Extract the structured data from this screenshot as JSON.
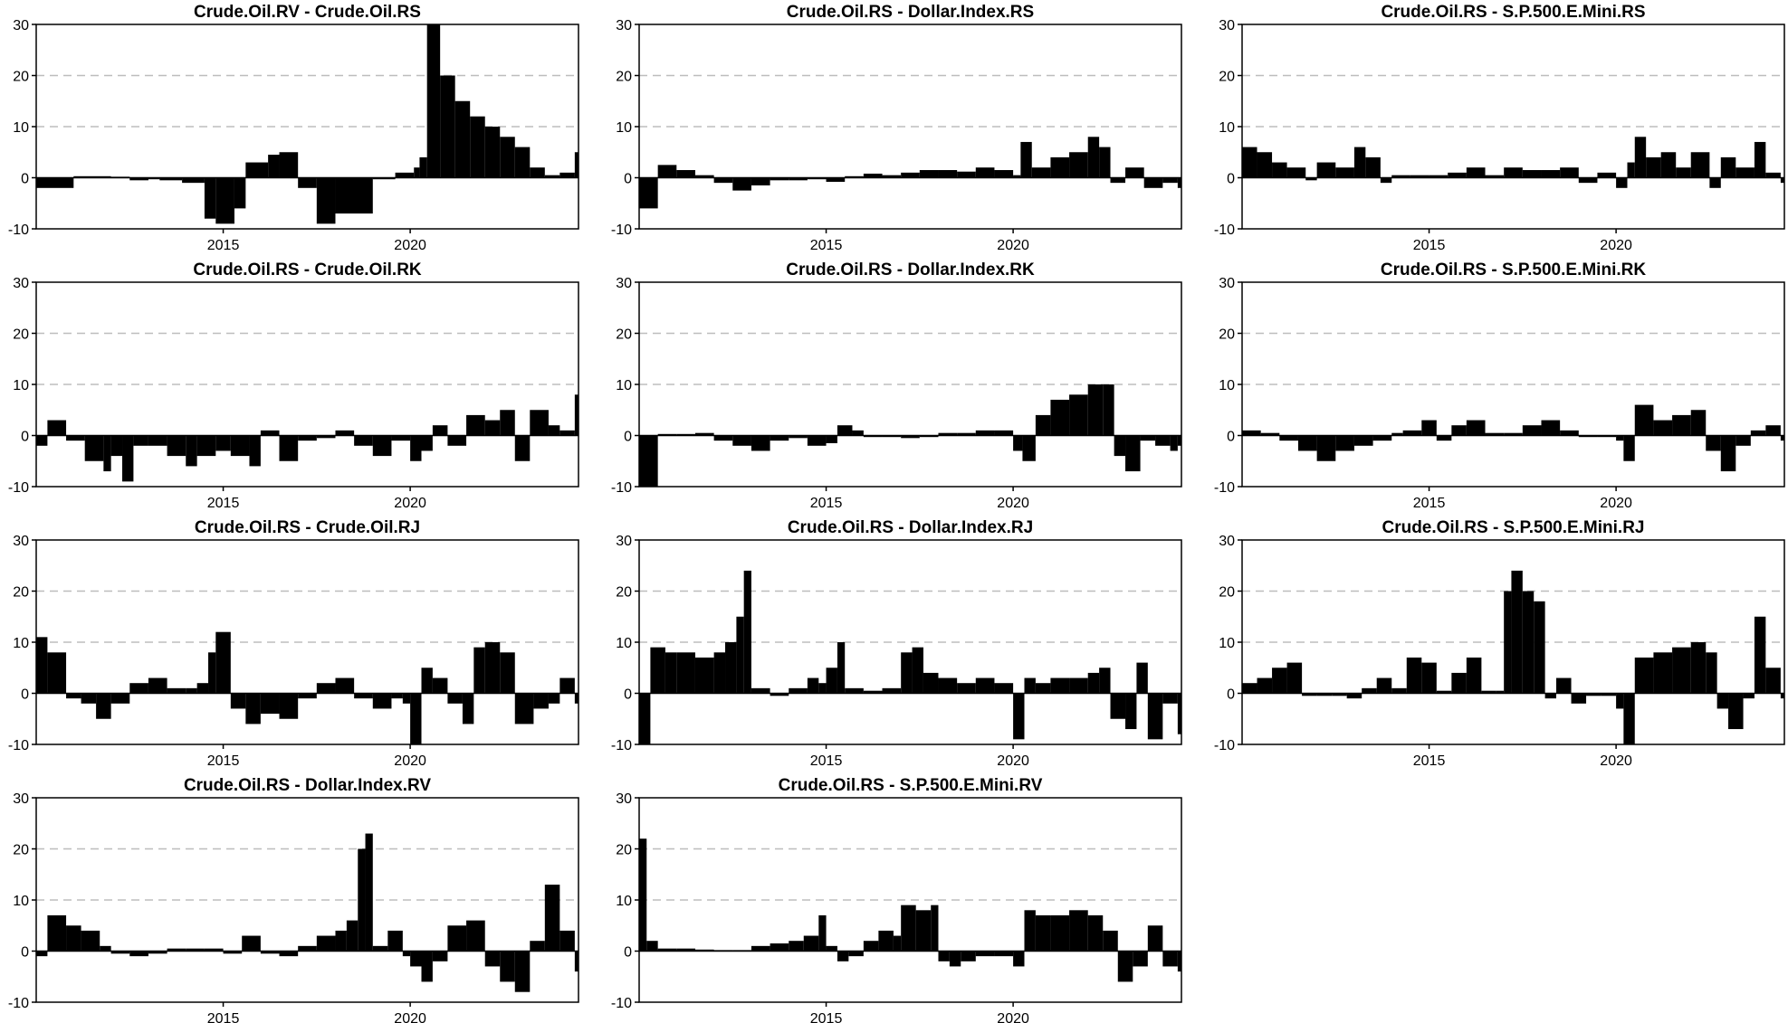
{
  "figure": {
    "ylim": [
      -10,
      30
    ],
    "yticks": [
      -10,
      0,
      10,
      20,
      30
    ],
    "xlim": [
      2010.0,
      2024.5
    ],
    "xticks": [
      2015,
      2020
    ],
    "xtick_labels": [
      "2015",
      "2020"
    ],
    "dashed_gridlines_at": [
      20,
      10
    ],
    "bar_color": "#000000",
    "grid_color": "#bdbdbd"
  },
  "chart_data": [
    {
      "type": "bar",
      "title": "Crude.Oil.RV - Crude.Oil.RS",
      "xlabel": "",
      "ylabel": "",
      "ylim": [
        -10,
        30
      ],
      "grid": "dashed horizontal",
      "x": [
        2010.0,
        2011.0,
        2012.0,
        2012.5,
        2013.0,
        2013.3,
        2013.9,
        2014.5,
        2014.8,
        2015.3,
        2015.6,
        2016.2,
        2016.5,
        2017.0,
        2017.5,
        2018.0,
        2019.0,
        2019.6,
        2020.1,
        2020.25,
        2020.45,
        2020.8,
        2021.2,
        2021.6,
        2022.0,
        2022.4,
        2022.8,
        2023.2,
        2023.6,
        2024.0,
        2024.4
      ],
      "values": [
        -2,
        0.3,
        0.2,
        -0.5,
        -0.3,
        -0.5,
        -1,
        -8,
        -9,
        -6,
        3,
        4.5,
        5,
        -2,
        -9,
        -7,
        -0.3,
        1,
        2,
        4,
        30,
        20,
        15,
        12,
        10,
        8,
        6,
        2,
        0.5,
        1,
        5
      ]
    },
    {
      "type": "bar",
      "title": "Crude.Oil.RS - Dollar.Index.RS",
      "xlabel": "",
      "ylabel": "",
      "ylim": [
        -10,
        30
      ],
      "grid": "dashed horizontal",
      "x": [
        2010.0,
        2010.5,
        2011.0,
        2011.5,
        2012.0,
        2012.5,
        2013.0,
        2013.5,
        2014.0,
        2014.5,
        2015.0,
        2015.5,
        2016.0,
        2016.5,
        2017.0,
        2017.5,
        2018.0,
        2018.5,
        2019.0,
        2019.5,
        2020.0,
        2020.2,
        2020.5,
        2021.0,
        2021.5,
        2022.0,
        2022.3,
        2022.6,
        2023.0,
        2023.5,
        2024.0,
        2024.4
      ],
      "values": [
        -6,
        2.5,
        1.5,
        0.5,
        -1,
        -2.5,
        -1.5,
        -0.5,
        -0.5,
        -0.3,
        -0.8,
        0.3,
        0.8,
        0.5,
        1,
        1.5,
        1.5,
        1.2,
        2,
        1.5,
        0.5,
        7,
        2,
        4,
        5,
        8,
        6,
        -1,
        2,
        -2,
        -1,
        -2
      ]
    },
    {
      "type": "bar",
      "title": "Crude.Oil.RS - S.P.500.E.Mini.RS",
      "xlabel": "",
      "ylabel": "",
      "ylim": [
        -10,
        30
      ],
      "grid": "dashed horizontal",
      "x": [
        2010.0,
        2010.4,
        2010.8,
        2011.2,
        2011.7,
        2012.0,
        2012.5,
        2013.0,
        2013.3,
        2013.7,
        2014.0,
        2014.5,
        2015.0,
        2015.5,
        2016.0,
        2016.5,
        2017.0,
        2017.5,
        2018.0,
        2018.5,
        2019.0,
        2019.5,
        2020.0,
        2020.3,
        2020.5,
        2020.8,
        2021.2,
        2021.6,
        2022.0,
        2022.5,
        2022.8,
        2023.2,
        2023.7,
        2024.0,
        2024.4
      ],
      "values": [
        6,
        5,
        3,
        2,
        -0.5,
        3,
        2,
        6,
        4,
        -1,
        0.5,
        0.5,
        0.5,
        1,
        2,
        0.5,
        2,
        1.5,
        1.5,
        2,
        -1,
        1,
        -2,
        3,
        8,
        4,
        5,
        2,
        5,
        -2,
        4,
        2,
        7,
        1,
        -1
      ]
    },
    {
      "type": "bar",
      "title": "Crude.Oil.RS - Crude.Oil.RK",
      "xlabel": "",
      "ylabel": "",
      "ylim": [
        -10,
        30
      ],
      "grid": "dashed horizontal",
      "x": [
        2010.0,
        2010.3,
        2010.8,
        2011.3,
        2011.8,
        2012.0,
        2012.3,
        2012.6,
        2013.0,
        2013.5,
        2014.0,
        2014.3,
        2014.8,
        2015.2,
        2015.7,
        2016.0,
        2016.5,
        2017.0,
        2017.5,
        2018.0,
        2018.5,
        2019.0,
        2019.5,
        2020.0,
        2020.3,
        2020.6,
        2021.0,
        2021.5,
        2022.0,
        2022.4,
        2022.8,
        2023.2,
        2023.7,
        2024.0,
        2024.4
      ],
      "values": [
        -2,
        3,
        -1,
        -5,
        -7,
        -4,
        -9,
        -2,
        -2,
        -4,
        -6,
        -4,
        -3,
        -4,
        -6,
        1,
        -5,
        -1,
        -0.5,
        1,
        -2,
        -4,
        -1,
        -5,
        -3,
        2,
        -2,
        4,
        3,
        5,
        -5,
        5,
        2,
        1,
        8
      ]
    },
    {
      "type": "bar",
      "title": "Crude.Oil.RS - Dollar.Index.RK",
      "xlabel": "",
      "ylabel": "",
      "ylim": [
        -10,
        30
      ],
      "grid": "dashed horizontal",
      "x": [
        2010.0,
        2010.5,
        2011.0,
        2011.5,
        2012.0,
        2012.5,
        2013.0,
        2013.5,
        2014.0,
        2014.5,
        2015.0,
        2015.3,
        2015.7,
        2016.0,
        2016.5,
        2017.0,
        2017.5,
        2018.0,
        2018.5,
        2019.0,
        2019.5,
        2020.0,
        2020.25,
        2020.6,
        2021.0,
        2021.5,
        2022.0,
        2022.4,
        2022.7,
        2023.0,
        2023.4,
        2023.8,
        2024.2,
        2024.4
      ],
      "values": [
        -10,
        0.3,
        0.3,
        0.5,
        -1,
        -2,
        -3,
        -1,
        -0.5,
        -2,
        -1.5,
        2,
        1,
        -0.3,
        -0.3,
        -0.5,
        -0.3,
        0.5,
        0.5,
        1,
        1,
        -3,
        -5,
        4,
        7,
        8,
        10,
        10,
        -4,
        -7,
        -1,
        -2,
        -3,
        -2
      ]
    },
    {
      "type": "bar",
      "title": "Crude.Oil.RS - S.P.500.E.Mini.RK",
      "xlabel": "",
      "ylabel": "",
      "ylim": [
        -10,
        30
      ],
      "grid": "dashed horizontal",
      "x": [
        2010.0,
        2010.5,
        2011.0,
        2011.5,
        2012.0,
        2012.5,
        2013.0,
        2013.5,
        2014.0,
        2014.3,
        2014.8,
        2015.2,
        2015.6,
        2016.0,
        2016.5,
        2017.0,
        2017.5,
        2018.0,
        2018.5,
        2019.0,
        2019.5,
        2020.0,
        2020.2,
        2020.5,
        2021.0,
        2021.5,
        2022.0,
        2022.4,
        2022.8,
        2023.2,
        2023.6,
        2024.0,
        2024.4
      ],
      "values": [
        1,
        0.5,
        -1,
        -3,
        -5,
        -3,
        -2,
        -1,
        0.5,
        1,
        3,
        -1,
        2,
        3,
        0.5,
        0.5,
        2,
        3,
        1,
        -0.3,
        -0.3,
        -1,
        -5,
        6,
        3,
        4,
        5,
        -3,
        -7,
        -2,
        1,
        2,
        -1
      ]
    },
    {
      "type": "bar",
      "title": "Crude.Oil.RS - Crude.Oil.RJ",
      "xlabel": "",
      "ylabel": "",
      "ylim": [
        -10,
        30
      ],
      "grid": "dashed horizontal",
      "x": [
        2010.0,
        2010.3,
        2010.8,
        2011.2,
        2011.6,
        2012.0,
        2012.5,
        2013.0,
        2013.5,
        2014.0,
        2014.3,
        2014.6,
        2014.8,
        2015.2,
        2015.6,
        2016.0,
        2016.5,
        2017.0,
        2017.5,
        2018.0,
        2018.5,
        2019.0,
        2019.5,
        2019.8,
        2020.0,
        2020.3,
        2020.6,
        2021.0,
        2021.4,
        2021.7,
        2022.0,
        2022.4,
        2022.8,
        2023.3,
        2023.7,
        2024.0,
        2024.4
      ],
      "values": [
        11,
        8,
        -1,
        -2,
        -5,
        -2,
        2,
        3,
        1,
        1,
        2,
        8,
        12,
        -3,
        -6,
        -4,
        -5,
        -1,
        2,
        3,
        -1,
        -3,
        -1,
        -2,
        -10,
        5,
        3,
        -2,
        -6,
        9,
        10,
        8,
        -6,
        -3,
        -2,
        3,
        -2
      ]
    },
    {
      "type": "bar",
      "title": "Crude.Oil.RS - Dollar.Index.RJ",
      "xlabel": "",
      "ylabel": "",
      "ylim": [
        -10,
        30
      ],
      "grid": "dashed horizontal",
      "x": [
        2010.0,
        2010.3,
        2010.7,
        2011.0,
        2011.5,
        2012.0,
        2012.3,
        2012.6,
        2012.8,
        2013.0,
        2013.5,
        2014.0,
        2014.5,
        2014.8,
        2015.0,
        2015.3,
        2015.5,
        2016.0,
        2016.5,
        2017.0,
        2017.3,
        2017.6,
        2018.0,
        2018.5,
        2019.0,
        2019.5,
        2020.0,
        2020.3,
        2020.6,
        2021.0,
        2021.5,
        2022.0,
        2022.3,
        2022.6,
        2023.0,
        2023.3,
        2023.6,
        2024.0,
        2024.4
      ],
      "values": [
        -10,
        9,
        8,
        8,
        7,
        8,
        10,
        15,
        24,
        1,
        -0.5,
        1,
        3,
        2,
        5,
        10,
        1,
        0.5,
        1,
        8,
        9,
        4,
        3,
        2,
        3,
        2,
        -9,
        3,
        2,
        3,
        3,
        4,
        5,
        -5,
        -7,
        6,
        -9,
        -2,
        -8
      ]
    },
    {
      "type": "bar",
      "title": "Crude.Oil.RS - S.P.500.E.Mini.RJ",
      "xlabel": "",
      "ylabel": "",
      "ylim": [
        -10,
        30
      ],
      "grid": "dashed horizontal",
      "x": [
        2010.0,
        2010.4,
        2010.8,
        2011.2,
        2011.6,
        2012.0,
        2012.4,
        2012.8,
        2013.2,
        2013.6,
        2014.0,
        2014.4,
        2014.8,
        2015.2,
        2015.6,
        2016.0,
        2016.4,
        2016.8,
        2017.0,
        2017.2,
        2017.5,
        2017.8,
        2018.1,
        2018.4,
        2018.8,
        2019.2,
        2019.6,
        2020.0,
        2020.2,
        2020.5,
        2021.0,
        2021.5,
        2022.0,
        2022.4,
        2022.7,
        2023.0,
        2023.4,
        2023.7,
        2024.0,
        2024.4
      ],
      "values": [
        2,
        3,
        5,
        6,
        -0.5,
        -0.5,
        -0.5,
        -1,
        1,
        3,
        1,
        7,
        6,
        0.5,
        4,
        7,
        0.5,
        0.5,
        20,
        24,
        20,
        18,
        -1,
        3,
        -2,
        -0.5,
        -0.5,
        -3,
        -10,
        7,
        8,
        9,
        10,
        8,
        -3,
        -7,
        -1,
        15,
        5,
        -1
      ]
    },
    {
      "type": "bar",
      "title": "Crude.Oil.RS - Dollar.Index.RV",
      "xlabel": "",
      "ylabel": "",
      "ylim": [
        -10,
        30
      ],
      "grid": "dashed horizontal",
      "x": [
        2010.0,
        2010.3,
        2010.8,
        2011.2,
        2011.7,
        2012.0,
        2012.5,
        2013.0,
        2013.5,
        2014.0,
        2014.5,
        2015.0,
        2015.5,
        2016.0,
        2016.5,
        2017.0,
        2017.5,
        2018.0,
        2018.3,
        2018.6,
        2018.8,
        2019.0,
        2019.4,
        2019.8,
        2020.0,
        2020.3,
        2020.6,
        2021.0,
        2021.5,
        2022.0,
        2022.4,
        2022.8,
        2023.2,
        2023.6,
        2024.0,
        2024.4
      ],
      "values": [
        -1,
        7,
        5,
        4,
        1,
        -0.5,
        -1,
        -0.5,
        0.5,
        0.5,
        0.5,
        -0.5,
        3,
        -0.5,
        -1,
        1,
        3,
        4,
        6,
        20,
        23,
        1,
        4,
        -1,
        -3,
        -6,
        -2,
        5,
        6,
        -3,
        -6,
        -8,
        2,
        13,
        4,
        -4
      ]
    },
    {
      "type": "bar",
      "title": "Crude.Oil.RS - S.P.500.E.Mini.RV",
      "xlabel": "",
      "ylabel": "",
      "ylim": [
        -10,
        30
      ],
      "grid": "dashed horizontal",
      "x": [
        2010.0,
        2010.2,
        2010.5,
        2011.0,
        2011.5,
        2012.0,
        2012.5,
        2013.0,
        2013.5,
        2014.0,
        2014.4,
        2014.8,
        2015.0,
        2015.3,
        2015.6,
        2016.0,
        2016.4,
        2016.8,
        2017.0,
        2017.4,
        2017.8,
        2018.0,
        2018.3,
        2018.6,
        2019.0,
        2019.5,
        2020.0,
        2020.3,
        2020.6,
        2021.0,
        2021.5,
        2022.0,
        2022.4,
        2022.8,
        2023.2,
        2023.6,
        2024.0,
        2024.4
      ],
      "values": [
        22,
        2,
        0.5,
        0.5,
        0.3,
        0.2,
        0.2,
        1,
        1.5,
        2,
        3,
        7,
        1,
        -2,
        -1,
        2,
        4,
        3,
        9,
        8,
        9,
        -2,
        -3,
        -2,
        -1,
        -1,
        -3,
        8,
        7,
        7,
        8,
        7,
        4,
        -6,
        -3,
        5,
        -3,
        -4
      ]
    }
  ]
}
